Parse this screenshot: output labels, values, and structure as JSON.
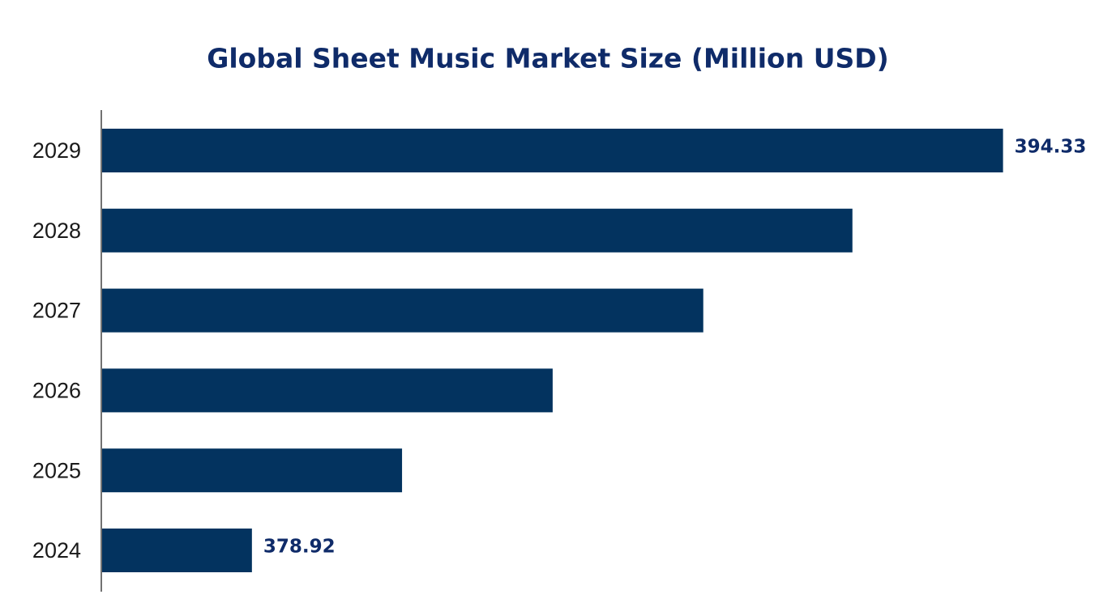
{
  "chart_data": {
    "type": "bar",
    "orientation": "horizontal",
    "title": "Global Sheet Music Market Size (Million USD)",
    "categories": [
      "2024",
      "2025",
      "2026",
      "2027",
      "2028",
      "2029"
    ],
    "values": [
      378.92,
      382.0,
      385.09,
      388.18,
      391.24,
      394.33
    ],
    "color": "#03335f",
    "xlim": [
      375.83,
      395.8
    ]
  }
}
